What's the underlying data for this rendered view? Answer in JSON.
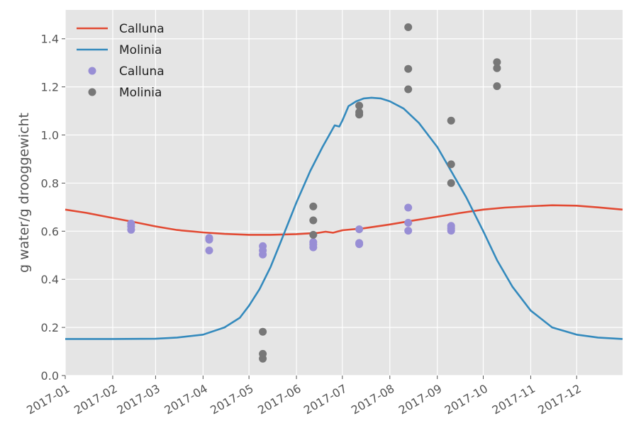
{
  "chart_data": {
    "type": "line",
    "title": "",
    "xlabel": "",
    "ylabel": "g water/g drooggewicht",
    "ylim": [
      0.0,
      1.52
    ],
    "xlim": [
      "2017-01-01",
      "2017-12-31"
    ],
    "grid": true,
    "legend_position": "top-left",
    "x_ticks": [
      "2017-01",
      "2017-02",
      "2017-03",
      "2017-04",
      "2017-05",
      "2017-06",
      "2017-07",
      "2017-08",
      "2017-09",
      "2017-10",
      "2017-11",
      "2017-12"
    ],
    "y_ticks": [
      "0.0",
      "0.2",
      "0.4",
      "0.6",
      "0.8",
      "1.0",
      "1.2",
      "1.4"
    ],
    "series": [
      {
        "name": "Calluna",
        "kind": "line",
        "color": "#e24a33",
        "points": [
          [
            "2017-01-01",
            0.69
          ],
          [
            "2017-01-15",
            0.676
          ],
          [
            "2017-02-01",
            0.655
          ],
          [
            "2017-02-15",
            0.638
          ],
          [
            "2017-03-01",
            0.62
          ],
          [
            "2017-03-15",
            0.605
          ],
          [
            "2017-04-01",
            0.595
          ],
          [
            "2017-04-15",
            0.589
          ],
          [
            "2017-05-01",
            0.585
          ],
          [
            "2017-05-15",
            0.585
          ],
          [
            "2017-06-01",
            0.588
          ],
          [
            "2017-06-15",
            0.593
          ],
          [
            "2017-06-20",
            0.598
          ],
          [
            "2017-06-25",
            0.594
          ],
          [
            "2017-07-01",
            0.604
          ],
          [
            "2017-07-15",
            0.612
          ],
          [
            "2017-08-01",
            0.628
          ],
          [
            "2017-08-15",
            0.643
          ],
          [
            "2017-09-01",
            0.66
          ],
          [
            "2017-09-15",
            0.675
          ],
          [
            "2017-10-01",
            0.69
          ],
          [
            "2017-10-15",
            0.698
          ],
          [
            "2017-11-01",
            0.704
          ],
          [
            "2017-11-15",
            0.708
          ],
          [
            "2017-12-01",
            0.706
          ],
          [
            "2017-12-15",
            0.699
          ],
          [
            "2017-12-31",
            0.69
          ]
        ]
      },
      {
        "name": "Molinia",
        "kind": "line",
        "color": "#348abd",
        "points": [
          [
            "2017-01-01",
            0.152
          ],
          [
            "2017-02-01",
            0.152
          ],
          [
            "2017-03-01",
            0.153
          ],
          [
            "2017-03-15",
            0.158
          ],
          [
            "2017-04-01",
            0.17
          ],
          [
            "2017-04-15",
            0.2
          ],
          [
            "2017-04-25",
            0.24
          ],
          [
            "2017-05-01",
            0.29
          ],
          [
            "2017-05-08",
            0.36
          ],
          [
            "2017-05-15",
            0.45
          ],
          [
            "2017-05-22",
            0.56
          ],
          [
            "2017-06-01",
            0.72
          ],
          [
            "2017-06-10",
            0.85
          ],
          [
            "2017-06-18",
            0.95
          ],
          [
            "2017-06-26",
            1.04
          ],
          [
            "2017-06-29",
            1.035
          ],
          [
            "2017-07-01",
            1.06
          ],
          [
            "2017-07-03",
            1.09
          ],
          [
            "2017-07-05",
            1.12
          ],
          [
            "2017-07-10",
            1.14
          ],
          [
            "2017-07-15",
            1.152
          ],
          [
            "2017-07-20",
            1.155
          ],
          [
            "2017-07-26",
            1.152
          ],
          [
            "2017-08-01",
            1.14
          ],
          [
            "2017-08-10",
            1.11
          ],
          [
            "2017-08-20",
            1.05
          ],
          [
            "2017-09-01",
            0.95
          ],
          [
            "2017-09-10",
            0.85
          ],
          [
            "2017-09-20",
            0.74
          ],
          [
            "2017-10-01",
            0.6
          ],
          [
            "2017-10-10",
            0.48
          ],
          [
            "2017-10-20",
            0.37
          ],
          [
            "2017-11-01",
            0.27
          ],
          [
            "2017-11-15",
            0.2
          ],
          [
            "2017-12-01",
            0.17
          ],
          [
            "2017-12-15",
            0.158
          ],
          [
            "2017-12-31",
            0.152
          ]
        ]
      },
      {
        "name": "Calluna",
        "kind": "scatter",
        "color": "#988ed5",
        "points": [
          [
            "2017-02-13",
            0.632
          ],
          [
            "2017-02-13",
            0.62
          ],
          [
            "2017-02-13",
            0.606
          ],
          [
            "2017-04-05",
            0.572
          ],
          [
            "2017-04-05",
            0.565
          ],
          [
            "2017-04-05",
            0.52
          ],
          [
            "2017-05-10",
            0.538
          ],
          [
            "2017-05-10",
            0.52
          ],
          [
            "2017-05-10",
            0.503
          ],
          [
            "2017-06-12",
            0.555
          ],
          [
            "2017-06-12",
            0.545
          ],
          [
            "2017-06-12",
            0.533
          ],
          [
            "2017-07-12",
            0.608
          ],
          [
            "2017-07-12",
            0.551
          ],
          [
            "2017-07-12",
            0.546
          ],
          [
            "2017-08-13",
            0.698
          ],
          [
            "2017-08-13",
            0.635
          ],
          [
            "2017-08-13",
            0.602
          ],
          [
            "2017-09-10",
            0.622
          ],
          [
            "2017-09-10",
            0.612
          ],
          [
            "2017-09-10",
            0.602
          ]
        ]
      },
      {
        "name": "Molinia",
        "kind": "scatter",
        "color": "#777777",
        "points": [
          [
            "2017-05-10",
            0.182
          ],
          [
            "2017-05-10",
            0.09
          ],
          [
            "2017-05-10",
            0.07
          ],
          [
            "2017-06-12",
            0.703
          ],
          [
            "2017-06-12",
            0.645
          ],
          [
            "2017-06-12",
            0.585
          ],
          [
            "2017-07-12",
            1.122
          ],
          [
            "2017-07-12",
            1.095
          ],
          [
            "2017-07-12",
            1.085
          ],
          [
            "2017-08-13",
            1.448
          ],
          [
            "2017-08-13",
            1.275
          ],
          [
            "2017-08-13",
            1.19
          ],
          [
            "2017-09-10",
            1.06
          ],
          [
            "2017-09-10",
            0.878
          ],
          [
            "2017-09-10",
            0.8
          ],
          [
            "2017-10-10",
            1.303
          ],
          [
            "2017-10-10",
            1.278
          ],
          [
            "2017-10-10",
            1.203
          ]
        ]
      }
    ]
  }
}
